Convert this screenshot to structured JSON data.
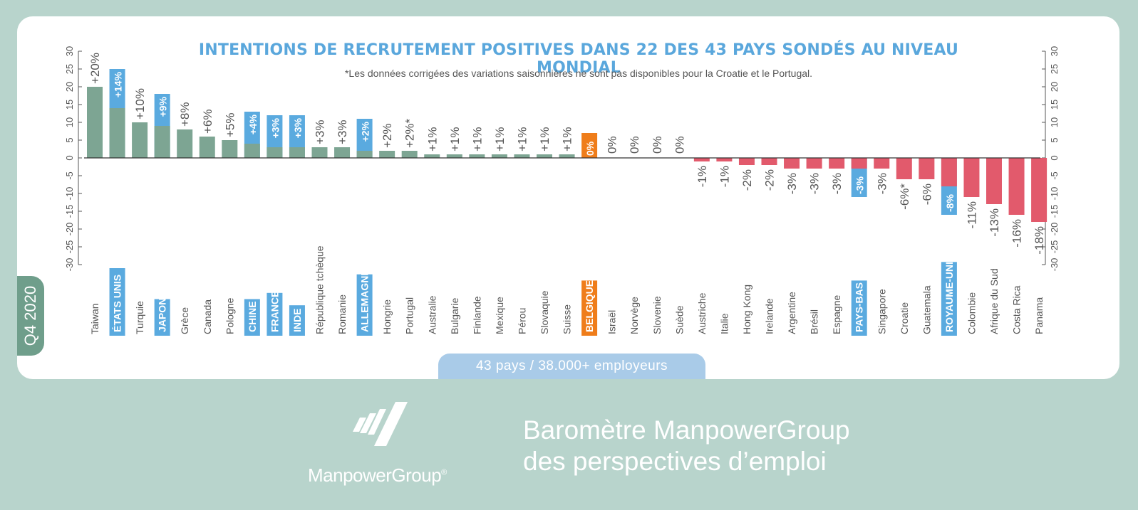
{
  "period": "Q4 2020",
  "title": "INTENTIONS DE RECRUTEMENT POSITIVES DANS 22 DES 43 PAYS SONDÉS AU NIVEAU MONDIAL",
  "note": "*Les données corrigées des variations saisonnières ne sont pas disponibles pour la Croatie et le Portugal.",
  "footer_pill": "43 pays / 38.000+ employeurs",
  "brand": "ManpowerGroup",
  "brand_mark": "®",
  "tagline_line1": "Baromètre ManpowerGroup",
  "tagline_line2": "des perspectives d’emploi",
  "colors": {
    "positive": "#7da593",
    "negative": "#e25a6c",
    "highlight": "#5aaadf",
    "belgium": "#ef7d1a",
    "title": "#5aa7dc"
  },
  "chart_data": {
    "type": "bar",
    "ylim": [
      -30,
      30
    ],
    "y_ticks": [
      30,
      25,
      20,
      15,
      10,
      5,
      0,
      -5,
      -10,
      -15,
      -20,
      -25,
      -30
    ],
    "grid": false,
    "series": [
      {
        "categories": [
          "Taiwan",
          "ÉTATS UNIS",
          "Turquie",
          "JAPON",
          "Grèce",
          "Canada",
          "Pologne",
          "CHINE",
          "FRANCE",
          "INDE",
          "République tchèque",
          "Romanie",
          "ALLEMAGNE",
          "Hongrie",
          "Portugal",
          "Australie",
          "Bulgarie",
          "Finlande",
          "Mexique",
          "Pérou",
          "Slovaquie",
          "Suisse",
          "BELGIQUE",
          "Israël",
          "Norvège",
          "Slovenie",
          "Suède",
          "Austriche",
          "Italie",
          "Hong Kong",
          "Irelande",
          "Argentine",
          "Brésil",
          "Espagne",
          "PAYS-BAS",
          "Singapore",
          "Croatie",
          "Guatemala",
          "ROYAUME-UNI",
          "Colombie",
          "Afrique du Sud",
          "Costa Rica",
          "Panama"
        ],
        "values": [
          20,
          14,
          10,
          9,
          8,
          6,
          5,
          4,
          3,
          3,
          3,
          3,
          2,
          2,
          2,
          1,
          1,
          1,
          1,
          1,
          1,
          1,
          0,
          0,
          0,
          0,
          0,
          -1,
          -1,
          -2,
          -2,
          -3,
          -3,
          -3,
          -3,
          -3,
          -6,
          -6,
          -8,
          -11,
          -13,
          -16,
          -18
        ],
        "labels": [
          "+20%",
          "+14%",
          "+10%",
          "+9%",
          "+8%",
          "+6%",
          "+5%",
          "+4%",
          "+3%",
          "+3%",
          "+3%",
          "+3%",
          "+2%",
          "+2%",
          "+2%*",
          "+1%",
          "+1%",
          "+1%",
          "+1%",
          "+1%",
          "+1%",
          "+1%",
          "0%",
          "0%",
          "0%",
          "0%",
          "0%",
          "-1%",
          "-1%",
          "-2%",
          "-2%",
          "-3%",
          "-3%",
          "-3%",
          "-3%",
          "-3%",
          "-6%*",
          "-6%",
          "-8%",
          "-11%",
          "-13%",
          "-16%",
          "-18%"
        ]
      }
    ],
    "highlight_categories": [
      "ÉTATS UNIS",
      "JAPON",
      "CHINE",
      "FRANCE",
      "INDE",
      "ALLEMAGNE",
      "PAYS-BAS",
      "ROYAUME-UNI"
    ],
    "highlight_box_tops": [
      25,
      18,
      13,
      12,
      12,
      11,
      -11,
      -16
    ],
    "belgium": {
      "category": "BELGIQUE",
      "box_top": 7
    }
  }
}
